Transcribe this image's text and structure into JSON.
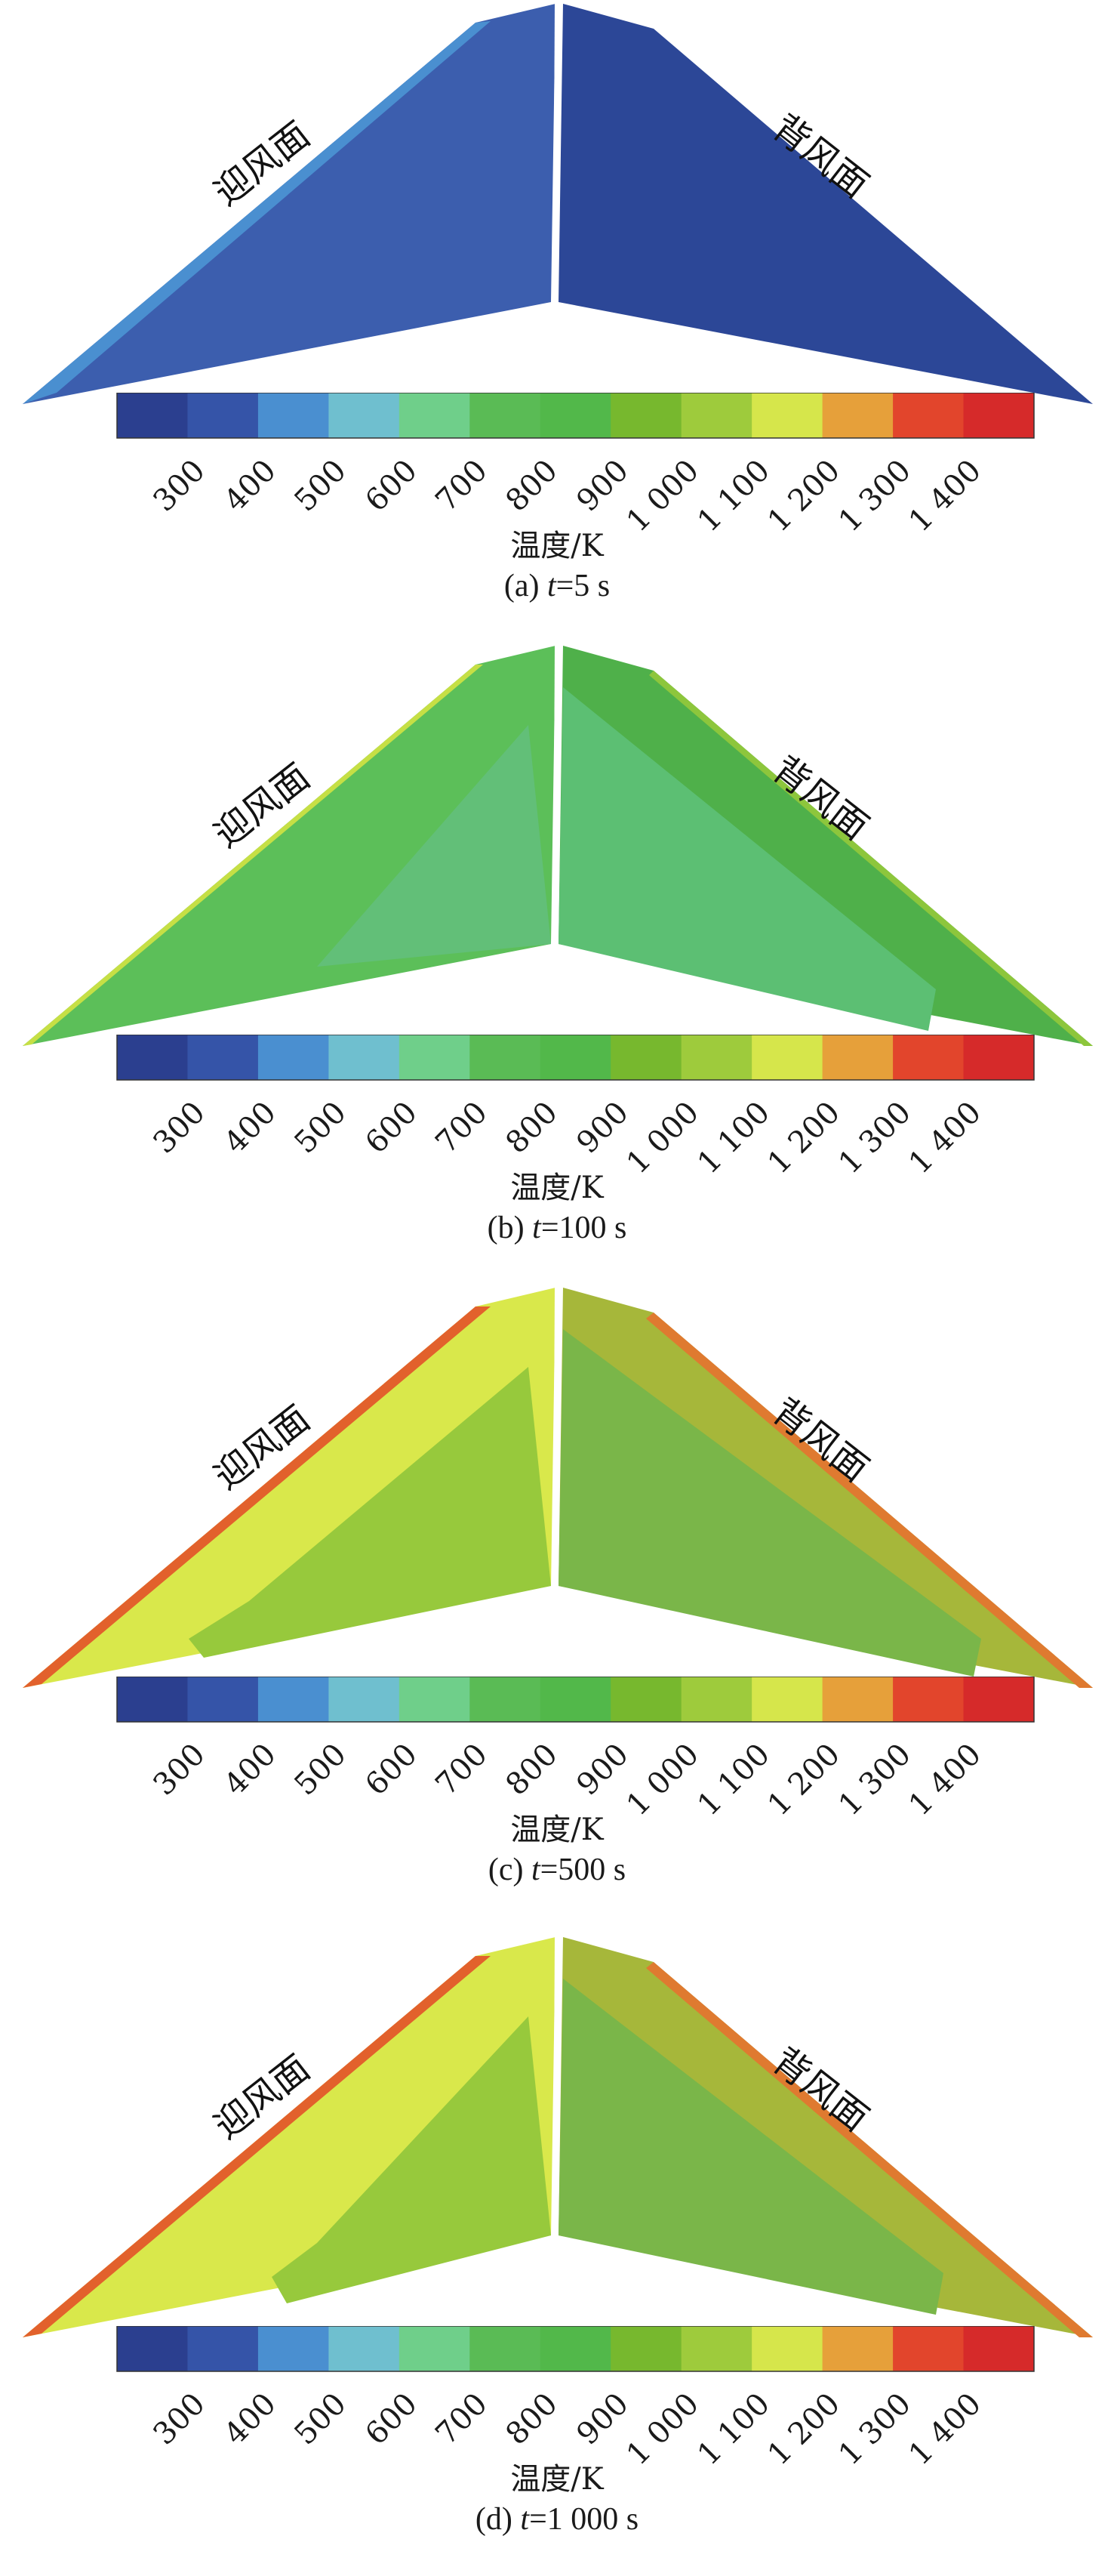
{
  "colorbar": {
    "colors": [
      "#2b3f8f",
      "#3554a8",
      "#4a8fd0",
      "#6fbfcf",
      "#6fcf8a",
      "#5abb55",
      "#52b84a",
      "#77b82e",
      "#9ecb3c",
      "#d6e64b",
      "#e6a03a",
      "#e2452c",
      "#d62a2a"
    ],
    "ticks": [
      "300",
      "400",
      "500",
      "600",
      "700",
      "800",
      "900",
      "1 000",
      "1 100",
      "1 200",
      "1 300",
      "1 400"
    ],
    "unit_label": "温度/K"
  },
  "labels": {
    "windward": "迎风面",
    "leeward": "背风面"
  },
  "panels": [
    {
      "id": "a",
      "caption_prefix": "(a) ",
      "t_symbol": "t",
      "caption_value": "=5 s",
      "colors": {
        "left_main": "#3c5eae",
        "left_edge": "#4a8fd0",
        "left_core": "#3c5eae",
        "right_main": "#2c4797",
        "right_edge": "#3554a8",
        "right_core": "#2c4797"
      }
    },
    {
      "id": "b",
      "caption_prefix": "(b) ",
      "t_symbol": "t",
      "caption_value": "=100 s",
      "colors": {
        "left_main": "#5cbf59",
        "left_edge": "#c6df45",
        "left_core": "#62bf78",
        "right_main": "#4fb04a",
        "right_edge": "#8dc63c",
        "right_core": "#5cbf73"
      }
    },
    {
      "id": "c",
      "caption_prefix": "(c) ",
      "t_symbol": "t",
      "caption_value": "=500 s",
      "colors": {
        "left_main": "#d9e84b",
        "left_edge": "#e2612c",
        "left_core": "#97c93c",
        "right_main": "#a6b73a",
        "right_edge": "#df7a30",
        "right_core": "#7ab649"
      }
    },
    {
      "id": "d",
      "caption_prefix": "(d) ",
      "t_symbol": "t",
      "caption_value": "=1 000 s",
      "colors": {
        "left_main": "#d9e84b",
        "left_edge": "#e2612c",
        "left_core": "#97c93c",
        "right_main": "#a6b73a",
        "right_edge": "#df7a30",
        "right_core": "#7ab649"
      }
    }
  ]
}
